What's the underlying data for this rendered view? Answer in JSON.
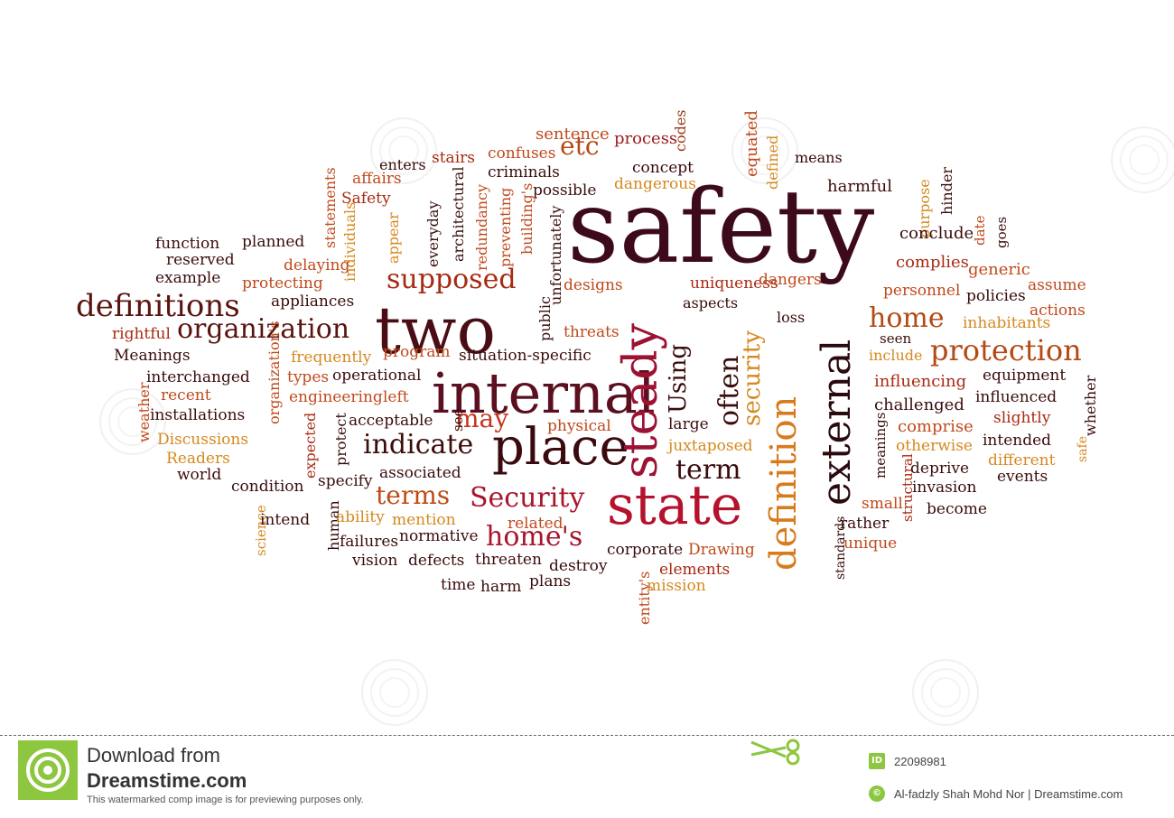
{
  "words": [
    {
      "text": "safety",
      "c": "#3d0a1c"
    },
    {
      "text": "two",
      "c": "#4a0d15"
    },
    {
      "text": "internal",
      "c": "#5b0f1f"
    },
    {
      "text": "state",
      "c": "#b5122d"
    },
    {
      "text": "place",
      "c": "#3a0a0f"
    },
    {
      "text": "steady",
      "c": "#9c1233"
    },
    {
      "text": "external",
      "c": "#2a0a0e"
    },
    {
      "text": "definition",
      "c": "#d77b1d"
    },
    {
      "text": "protection",
      "c": "#b34a14"
    },
    {
      "text": "definitions",
      "c": "#5a1410"
    },
    {
      "text": "organization",
      "c": "#5a1410"
    },
    {
      "text": "supposed",
      "c": "#a82a12"
    },
    {
      "text": "indicate",
      "c": "#3d0c0c"
    },
    {
      "text": "Security",
      "c": "#a8162c"
    },
    {
      "text": "home's",
      "c": "#a8162c"
    },
    {
      "text": "terms",
      "c": "#bf4a15"
    },
    {
      "text": "may",
      "c": "#c6341c"
    },
    {
      "text": "term",
      "c": "#3a0c0c"
    },
    {
      "text": "home",
      "c": "#b34a14"
    },
    {
      "text": "often",
      "c": "#3a0c0c"
    },
    {
      "text": "Using",
      "c": "#3a0c0c"
    },
    {
      "text": "security",
      "c": "#d5891e"
    },
    {
      "text": "etc",
      "c": "#b34a14"
    },
    {
      "text": "sentence",
      "c": "#c0491c"
    },
    {
      "text": "process",
      "c": "#9c1a1a"
    },
    {
      "text": "codes",
      "c": "#9c3a1a"
    },
    {
      "text": "equated",
      "c": "#c0491c"
    },
    {
      "text": "defined",
      "c": "#d5891e"
    },
    {
      "text": "means",
      "c": "#3a0c0c"
    },
    {
      "text": "harmful",
      "c": "#3a0c0c"
    },
    {
      "text": "purpose",
      "c": "#d5891e"
    },
    {
      "text": "hinder",
      "c": "#3a0c0c"
    },
    {
      "text": "conclude",
      "c": "#3a0c0c"
    },
    {
      "text": "date",
      "c": "#c0491c"
    },
    {
      "text": "goes",
      "c": "#3a0c0c"
    },
    {
      "text": "complies",
      "c": "#a82a12"
    },
    {
      "text": "generic",
      "c": "#c0491c"
    },
    {
      "text": "assume",
      "c": "#c0491c"
    },
    {
      "text": "personnel",
      "c": "#c0491c"
    },
    {
      "text": "policies",
      "c": "#3a0c0c"
    },
    {
      "text": "actions",
      "c": "#c0491c"
    },
    {
      "text": "inhabitants",
      "c": "#d5891e"
    },
    {
      "text": "seen",
      "c": "#3a0c0c"
    },
    {
      "text": "include",
      "c": "#d5891e"
    },
    {
      "text": "influencing",
      "c": "#a82a12"
    },
    {
      "text": "equipment",
      "c": "#3a0c0c"
    },
    {
      "text": "whether",
      "c": "#3a0c0c"
    },
    {
      "text": "challenged",
      "c": "#3a0c0c"
    },
    {
      "text": "influenced",
      "c": "#3a0c0c"
    },
    {
      "text": "comprise",
      "c": "#c0491c"
    },
    {
      "text": "slightly",
      "c": "#a82a12"
    },
    {
      "text": "otherwise",
      "c": "#d5891e"
    },
    {
      "text": "intended",
      "c": "#3a0c0c"
    },
    {
      "text": "safe",
      "c": "#d5891e"
    },
    {
      "text": "meanings",
      "c": "#3a0c0c"
    },
    {
      "text": "structural",
      "c": "#a82a12"
    },
    {
      "text": "deprive",
      "c": "#3a0c0c"
    },
    {
      "text": "different",
      "c": "#d5891e"
    },
    {
      "text": "invasion",
      "c": "#3a0c0c"
    },
    {
      "text": "events",
      "c": "#3a0c0c"
    },
    {
      "text": "small",
      "c": "#c0491c"
    },
    {
      "text": "become",
      "c": "#3a0c0c"
    },
    {
      "text": "rather",
      "c": "#3a0c0c"
    },
    {
      "text": "unique",
      "c": "#c0491c"
    },
    {
      "text": "standards",
      "c": "#3a0c0c"
    },
    {
      "text": "enters",
      "c": "#3a0c0c"
    },
    {
      "text": "stairs",
      "c": "#a82a12"
    },
    {
      "text": "confuses",
      "c": "#c0491c"
    },
    {
      "text": "criminals",
      "c": "#3a0c0c"
    },
    {
      "text": "concept",
      "c": "#3a0c0c"
    },
    {
      "text": "possible",
      "c": "#3a0c0c"
    },
    {
      "text": "dangerous",
      "c": "#d5891e"
    },
    {
      "text": "affairs",
      "c": "#c0491c"
    },
    {
      "text": "Safety",
      "c": "#a82a12"
    },
    {
      "text": "statements",
      "c": "#c0491c"
    },
    {
      "text": "individuals",
      "c": "#d5891e"
    },
    {
      "text": "appear",
      "c": "#d5891e"
    },
    {
      "text": "everyday",
      "c": "#3a0c0c"
    },
    {
      "text": "architectural",
      "c": "#3a0c0c"
    },
    {
      "text": "redundancy",
      "c": "#c0491c"
    },
    {
      "text": "preventing",
      "c": "#c0491c"
    },
    {
      "text": "building's",
      "c": "#c0491c"
    },
    {
      "text": "unfortunately",
      "c": "#3a0c0c"
    },
    {
      "text": "public",
      "c": "#3a0c0c"
    },
    {
      "text": "designs",
      "c": "#c0491c"
    },
    {
      "text": "uniqueness",
      "c": "#a82a12"
    },
    {
      "text": "dangers",
      "c": "#c0491c"
    },
    {
      "text": "aspects",
      "c": "#3a0c0c"
    },
    {
      "text": "loss",
      "c": "#3a0c0c"
    },
    {
      "text": "threats",
      "c": "#c0491c"
    },
    {
      "text": "function",
      "c": "#3a0c0c"
    },
    {
      "text": "planned",
      "c": "#3a0c0c"
    },
    {
      "text": "reserved",
      "c": "#3a0c0c"
    },
    {
      "text": "delaying",
      "c": "#c0491c"
    },
    {
      "text": "example",
      "c": "#3a0c0c"
    },
    {
      "text": "protecting",
      "c": "#c0491c"
    },
    {
      "text": "appliances",
      "c": "#3a0c0c"
    },
    {
      "text": "rightful",
      "c": "#a82a12"
    },
    {
      "text": "Meanings",
      "c": "#3a0c0c"
    },
    {
      "text": "frequently",
      "c": "#d5891e"
    },
    {
      "text": "program",
      "c": "#c0491c"
    },
    {
      "text": "situation-specific",
      "c": "#3a0c0c"
    },
    {
      "text": "interchanged",
      "c": "#3a0c0c"
    },
    {
      "text": "types",
      "c": "#c0491c"
    },
    {
      "text": "operational",
      "c": "#3a0c0c"
    },
    {
      "text": "recent",
      "c": "#c0491c"
    },
    {
      "text": "engineering",
      "c": "#c0491c"
    },
    {
      "text": "left",
      "c": "#c0491c"
    },
    {
      "text": "weather",
      "c": "#c0491c"
    },
    {
      "text": "installations",
      "c": "#3a0c0c"
    },
    {
      "text": "organization's",
      "c": "#c0491c"
    },
    {
      "text": "expected",
      "c": "#a82a12"
    },
    {
      "text": "protect",
      "c": "#3a0c0c"
    },
    {
      "text": "acceptable",
      "c": "#3a0c0c"
    },
    {
      "text": "see",
      "c": "#3a0c0c"
    },
    {
      "text": "physical",
      "c": "#c0491c"
    },
    {
      "text": "large",
      "c": "#3a0c0c"
    },
    {
      "text": "juxtaposed",
      "c": "#d5891e"
    },
    {
      "text": "Discussions",
      "c": "#d5891e"
    },
    {
      "text": "Readers",
      "c": "#d5891e"
    },
    {
      "text": "world",
      "c": "#3a0c0c"
    },
    {
      "text": "specify",
      "c": "#3a0c0c"
    },
    {
      "text": "associated",
      "c": "#3a0c0c"
    },
    {
      "text": "condition",
      "c": "#3a0c0c"
    },
    {
      "text": "science",
      "c": "#d5891e"
    },
    {
      "text": "intend",
      "c": "#3a0c0c"
    },
    {
      "text": "human",
      "c": "#3a0c0c"
    },
    {
      "text": "ability",
      "c": "#d5891e"
    },
    {
      "text": "mention",
      "c": "#d5891e"
    },
    {
      "text": "related",
      "c": "#c0491c"
    },
    {
      "text": "failures",
      "c": "#3a0c0c"
    },
    {
      "text": "normative",
      "c": "#3a0c0c"
    },
    {
      "text": "corporate",
      "c": "#3a0c0c"
    },
    {
      "text": "Drawing",
      "c": "#c0491c"
    },
    {
      "text": "vision",
      "c": "#3a0c0c"
    },
    {
      "text": "defects",
      "c": "#3a0c0c"
    },
    {
      "text": "threaten",
      "c": "#3a0c0c"
    },
    {
      "text": "destroy",
      "c": "#3a0c0c"
    },
    {
      "text": "elements",
      "c": "#a82a12"
    },
    {
      "text": "time",
      "c": "#3a0c0c"
    },
    {
      "text": "harm",
      "c": "#3a0c0c"
    },
    {
      "text": "plans",
      "c": "#3a0c0c"
    },
    {
      "text": "entity's",
      "c": "#c0491c"
    },
    {
      "text": "mission",
      "c": "#d5891e"
    }
  ],
  "footer": {
    "download_from": "Download from",
    "site": "Dreamstime.com",
    "disclaimer": "This watermarked comp image is for previewing purposes only.",
    "id_badge": "ID",
    "image_id": "22098981",
    "credit": "Al-fadzly Shah Mohd Nor | Dreamstime.com",
    "logo_color": "#8dc63f"
  }
}
